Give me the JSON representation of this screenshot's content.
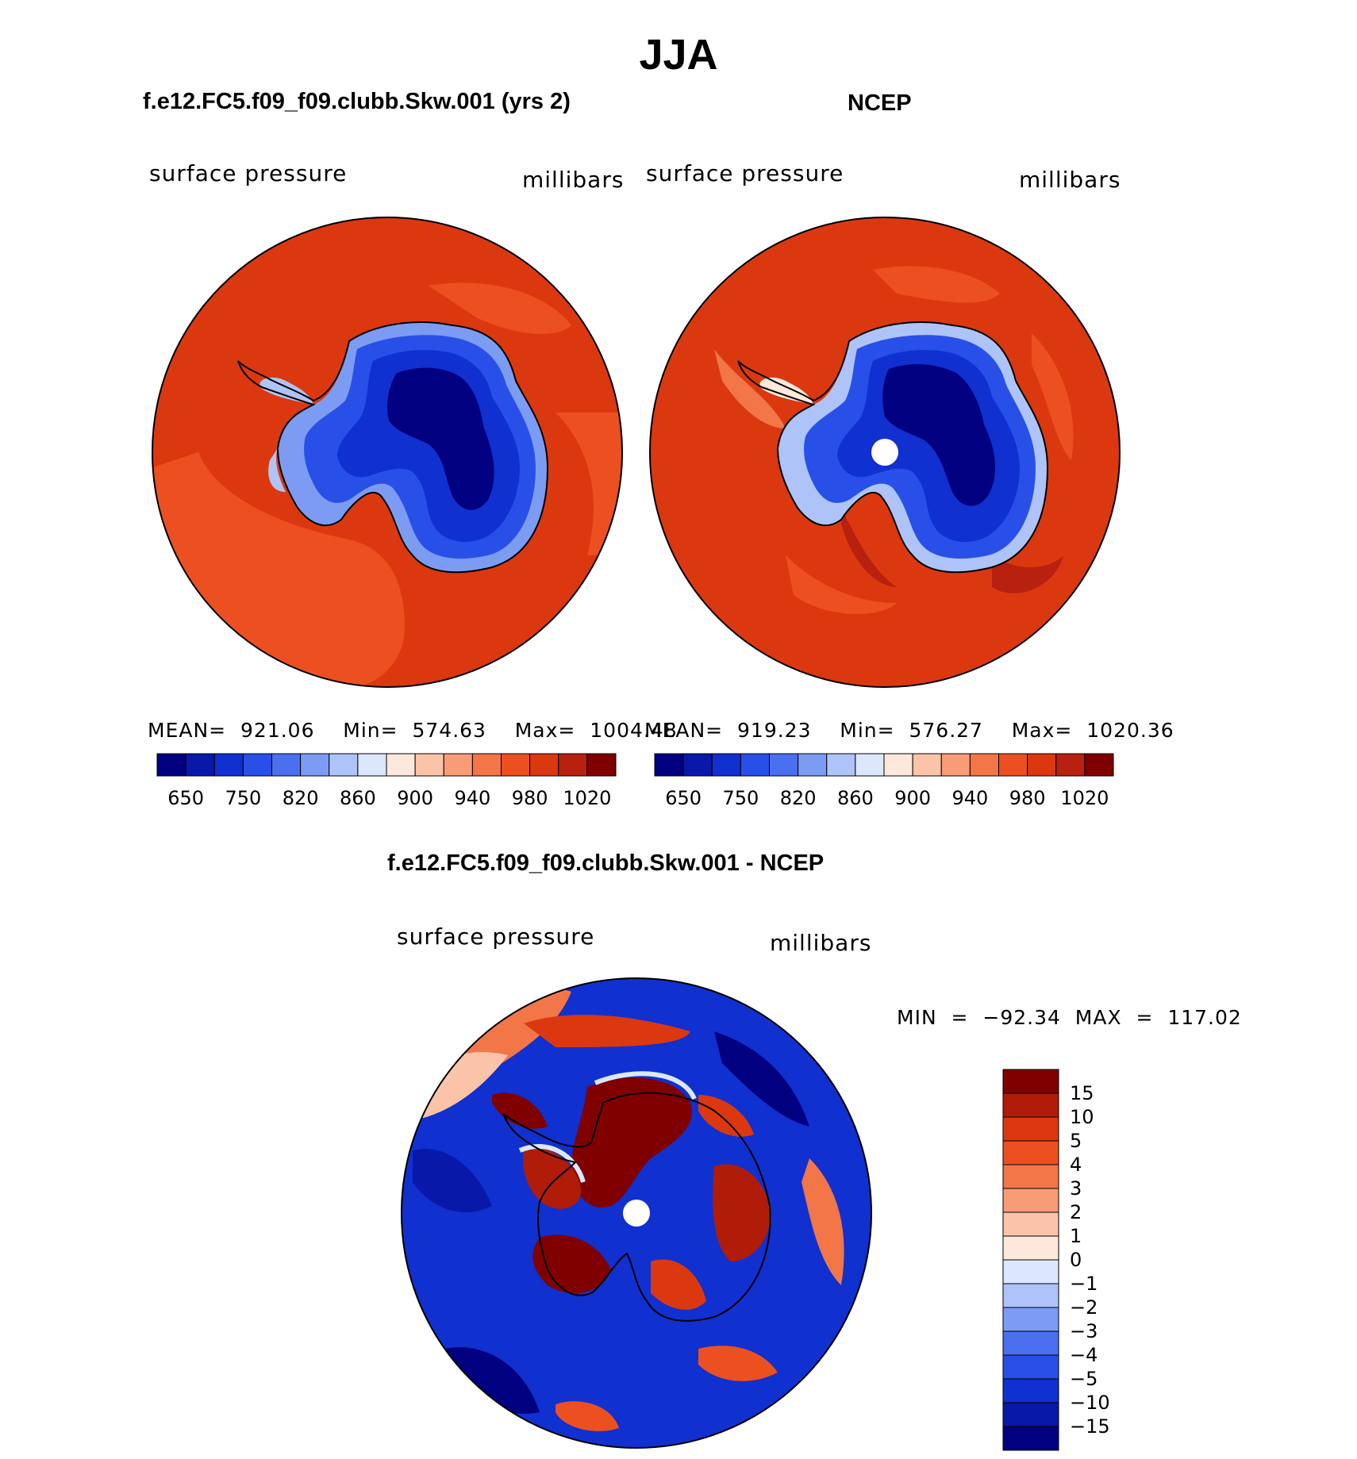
{
  "figure": {
    "season": "JJA"
  },
  "panels": [
    {
      "id": "model",
      "title": "f.e12.FC5.f09_f09.clubb.Skw.001 (yrs 2)",
      "left_label": "surface  pressure",
      "right_label": "millibars",
      "stats": "MEAN=  921.06    Min=  574.63    Max=  1004.48",
      "colorbar_ticks": [
        "650",
        "750",
        "820",
        "860",
        "900",
        "940",
        "980",
        "1020"
      ]
    },
    {
      "id": "obs",
      "title": "NCEP",
      "left_label": "surface  pressure",
      "right_label": "millibars",
      "stats": "MEAN=  919.23    Min=  576.27    Max=  1020.36",
      "colorbar_ticks": [
        "650",
        "750",
        "820",
        "860",
        "900",
        "940",
        "980",
        "1020"
      ]
    }
  ],
  "difference": {
    "title": "f.e12.FC5.f09_f09.clubb.Skw.001 - NCEP",
    "left_label": "surface  pressure",
    "right_label": "millibars",
    "minmax": "MIN  =  −92.34  MAX  =  117.02",
    "colorbar_ticks": [
      "15",
      "10",
      "5",
      "4",
      "3",
      "2",
      "1",
      "0",
      "−1",
      "−2",
      "−3",
      "−4",
      "−5",
      "−10",
      "−15"
    ]
  },
  "colors": {
    "absolute_scale": [
      "#000080",
      "#0818a8",
      "#1030d0",
      "#2850e8",
      "#4a70f0",
      "#7c9cf4",
      "#aec4f8",
      "#dbe8fc",
      "#fde8dc",
      "#fbc4a8",
      "#f89c78",
      "#f27648",
      "#ec5020",
      "#dc3810",
      "#b82010",
      "#800000"
    ],
    "diff_scale": [
      "#800000",
      "#b01c08",
      "#dc3810",
      "#ec5020",
      "#f27648",
      "#f89c78",
      "#fbc4a8",
      "#fde8dc",
      "#dbe8fc",
      "#aec4f8",
      "#7c9cf4",
      "#4a70f0",
      "#2850e8",
      "#1030d0",
      "#0818a8",
      "#000080"
    ]
  }
}
